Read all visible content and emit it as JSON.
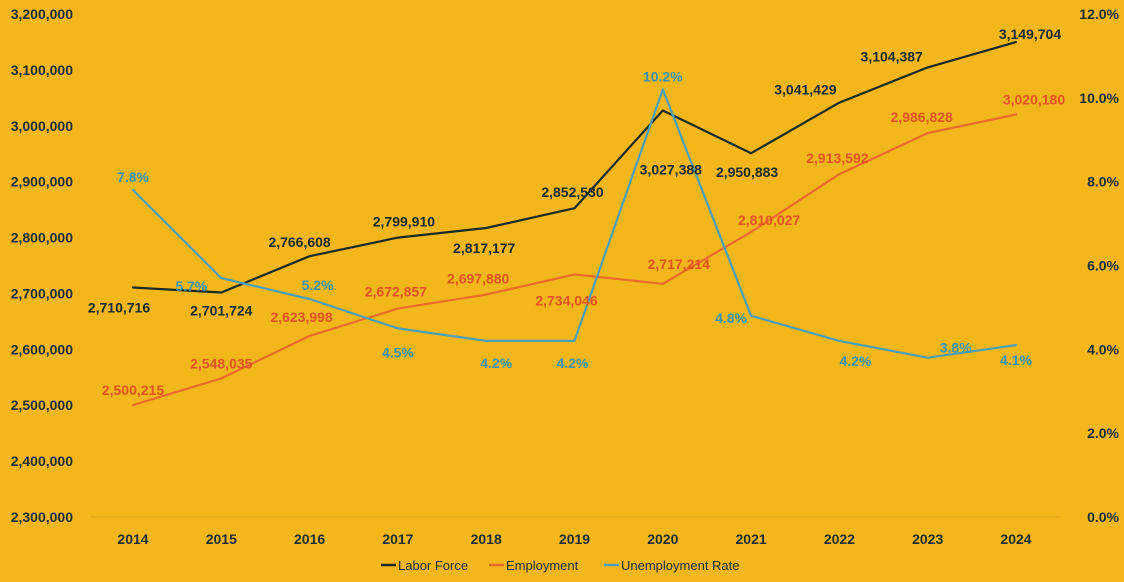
{
  "chart_data": {
    "type": "line",
    "title": "",
    "xlabel": "",
    "ylabel": "",
    "categories": [
      "2014",
      "2015",
      "2016",
      "2017",
      "2018",
      "2019",
      "2020",
      "2021",
      "2022",
      "2023",
      "2024"
    ],
    "left_axis": {
      "ylim": [
        2300000,
        3200000
      ],
      "ticks": [
        "2,300,000",
        "2,400,000",
        "2,500,000",
        "2,600,000",
        "2,700,000",
        "2,800,000",
        "2,900,000",
        "3,000,000",
        "3,100,000",
        "3,200,000"
      ]
    },
    "right_axis": {
      "ylim": [
        0,
        12
      ],
      "ticks": [
        "0.0%",
        "2.0%",
        "4.0%",
        "6.0%",
        "8.0%",
        "10.0%",
        "12.0%"
      ]
    },
    "series": [
      {
        "name": "Labor Force",
        "axis": "left",
        "color": "#1B2A26",
        "values": [
          2710716,
          2701724,
          2766608,
          2799910,
          2817177,
          2852530,
          3027388,
          2950883,
          3041429,
          3104387,
          3149704
        ],
        "labels": [
          "2,710,716",
          "2,701,724",
          "2,766,608",
          "2,799,910",
          "2,817,177",
          "2,852,530",
          "3,027,388",
          "2,950,883",
          "3,041,429",
          "3,104,387",
          "3,149,704"
        ],
        "label_color": "#1B2A26"
      },
      {
        "name": "Employment",
        "axis": "left",
        "color": "#EA6A2A",
        "values": [
          2500215,
          2548035,
          2623998,
          2672857,
          2697880,
          2734046,
          2717214,
          2810027,
          2913592,
          2986828,
          3020180
        ],
        "labels": [
          "2,500,215",
          "2,548,035",
          "2,623,998",
          "2,672,857",
          "2,697,880",
          "2,734,046",
          "2,717,214",
          "2,810,027",
          "2,913,592",
          "2,986,828",
          "3,020,180"
        ],
        "label_color": "#E2531F"
      },
      {
        "name": "Unemployment Rate",
        "axis": "right",
        "color": "#4C9FB8",
        "values": [
          7.8,
          5.7,
          5.2,
          4.5,
          4.2,
          4.2,
          10.2,
          4.8,
          4.2,
          3.8,
          4.1
        ],
        "labels": [
          "7.8%",
          "5.7%",
          "5.2%",
          "4.5%",
          "4.2%",
          "4.2%",
          "10.2%",
          "4.8%",
          "4.2%",
          "3.8%",
          "4.1%"
        ],
        "label_color": "#3A93AE"
      }
    ],
    "legend": {
      "position": "bottom",
      "items": [
        "Labor Force",
        "Employment",
        "Unemployment Rate"
      ]
    }
  }
}
